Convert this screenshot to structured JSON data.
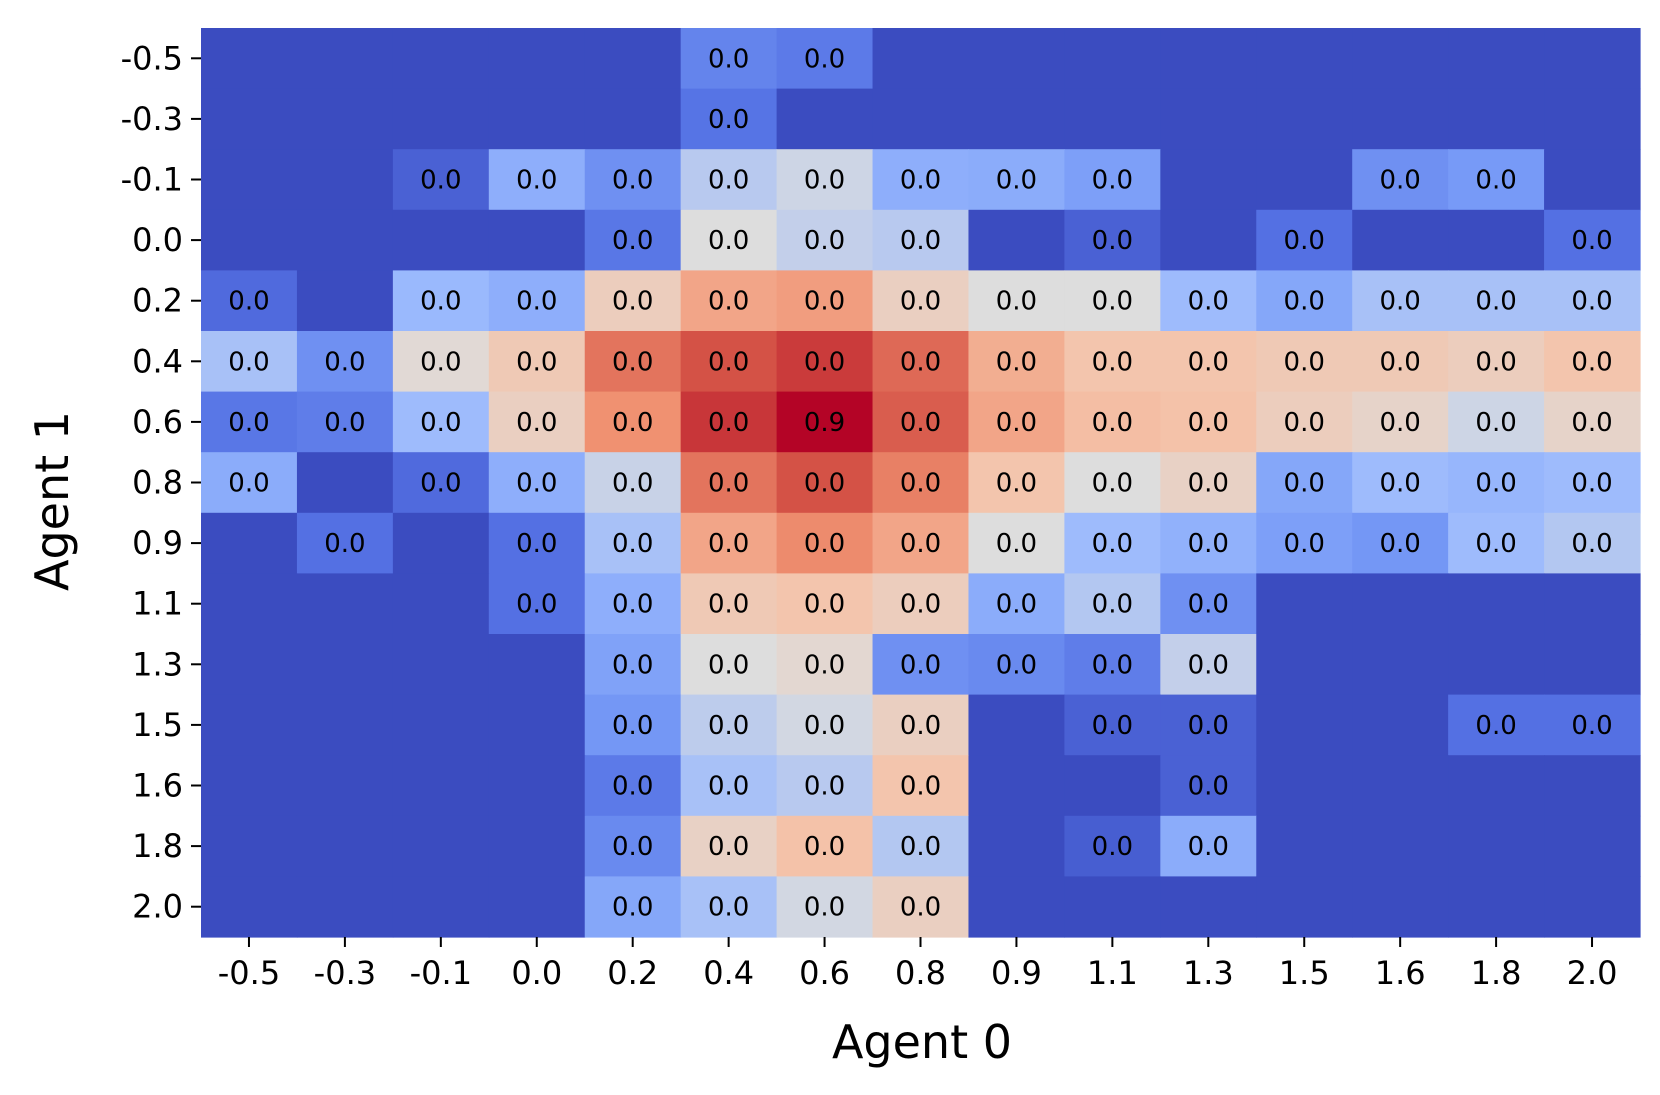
{
  "chart_data": {
    "type": "heatmap",
    "xlabel": "Agent 0",
    "ylabel": "Agent 1",
    "x_ticks": [
      "-0.5",
      "-0.3",
      "-0.1",
      "0.0",
      "0.2",
      "0.4",
      "0.6",
      "0.8",
      "0.9",
      "1.1",
      "1.3",
      "1.5",
      "1.6",
      "1.8",
      "2.0"
    ],
    "y_ticks": [
      "-0.5",
      "-0.3",
      "-0.1",
      "0.0",
      "0.2",
      "0.4",
      "0.6",
      "0.8",
      "0.9",
      "1.1",
      "1.3",
      "1.5",
      "1.6",
      "1.8",
      "2.0"
    ],
    "colormap": "coolwarm",
    "values": [
      [
        0,
        0,
        0,
        0,
        0,
        0.18,
        0.15,
        0,
        0,
        0,
        0,
        0,
        0,
        0,
        0
      ],
      [
        0,
        0,
        0,
        0,
        0,
        0.13,
        0,
        0,
        0,
        0,
        0,
        0,
        0,
        0,
        0
      ],
      [
        0,
        0,
        0.07,
        0.33,
        0.22,
        0.43,
        0.47,
        0.33,
        0.32,
        0.27,
        0,
        0,
        0.22,
        0.25,
        0
      ],
      [
        0,
        0,
        0,
        0,
        0.14,
        0.5,
        0.45,
        0.43,
        0,
        0.07,
        0,
        0.12,
        0,
        0,
        0.12
      ],
      [
        0.1,
        0,
        0.37,
        0.33,
        0.58,
        0.7,
        0.72,
        0.57,
        0.5,
        0.5,
        0.38,
        0.3,
        0.4,
        0.4,
        0.4
      ],
      [
        0.4,
        0.22,
        0.52,
        0.6,
        0.8,
        0.86,
        0.9,
        0.82,
        0.68,
        0.62,
        0.62,
        0.6,
        0.6,
        0.58,
        0.62
      ],
      [
        0.14,
        0.16,
        0.38,
        0.57,
        0.75,
        0.91,
        1.0,
        0.84,
        0.7,
        0.64,
        0.63,
        0.58,
        0.55,
        0.47,
        0.55
      ],
      [
        0.32,
        0,
        0.1,
        0.33,
        0.46,
        0.8,
        0.86,
        0.78,
        0.62,
        0.5,
        0.56,
        0.3,
        0.38,
        0.36,
        0.38
      ],
      [
        0,
        0.12,
        0,
        0.12,
        0.4,
        0.7,
        0.76,
        0.7,
        0.5,
        0.38,
        0.34,
        0.27,
        0.24,
        0.38,
        0.42
      ],
      [
        0,
        0,
        0,
        0.12,
        0.33,
        0.6,
        0.62,
        0.58,
        0.32,
        0.42,
        0.22,
        0,
        0,
        0,
        0
      ],
      [
        0,
        0,
        0,
        0,
        0.28,
        0.5,
        0.53,
        0.22,
        0.2,
        0.16,
        0.45,
        0,
        0,
        0,
        0
      ],
      [
        0,
        0,
        0,
        0,
        0.24,
        0.44,
        0.48,
        0.57,
        0,
        0.07,
        0.07,
        0,
        0,
        0.12,
        0.12
      ],
      [
        0,
        0,
        0,
        0,
        0.15,
        0.4,
        0.43,
        0.62,
        0,
        0,
        0.07,
        0,
        0,
        0,
        0
      ],
      [
        0,
        0,
        0,
        0,
        0.2,
        0.56,
        0.63,
        0.42,
        0,
        0.06,
        0.32,
        0,
        0,
        0,
        0
      ],
      [
        0,
        0,
        0,
        0,
        0.3,
        0.4,
        0.48,
        0.57,
        0,
        0,
        0,
        0,
        0,
        0,
        0
      ]
    ],
    "labels": [
      [
        "",
        "",
        "",
        "",
        "",
        "0.0",
        "0.0",
        "",
        "",
        "",
        "",
        "",
        "",
        "",
        ""
      ],
      [
        "",
        "",
        "",
        "",
        "",
        "0.0",
        "",
        "",
        "",
        "",
        "",
        "",
        "",
        "",
        ""
      ],
      [
        "",
        "",
        "0.0",
        "0.0",
        "0.0",
        "0.0",
        "0.0",
        "0.0",
        "0.0",
        "0.0",
        "",
        "",
        "0.0",
        "0.0",
        ""
      ],
      [
        "",
        "",
        "",
        "",
        "0.0",
        "0.0",
        "0.0",
        "0.0",
        "",
        "0.0",
        "",
        "0.0",
        "",
        "",
        "0.0"
      ],
      [
        "0.0",
        "",
        "0.0",
        "0.0",
        "0.0",
        "0.0",
        "0.0",
        "0.0",
        "0.0",
        "0.0",
        "0.0",
        "0.0",
        "0.0",
        "0.0",
        "0.0"
      ],
      [
        "0.0",
        "0.0",
        "0.0",
        "0.0",
        "0.0",
        "0.0",
        "0.0",
        "0.0",
        "0.0",
        "0.0",
        "0.0",
        "0.0",
        "0.0",
        "0.0",
        "0.0"
      ],
      [
        "0.0",
        "0.0",
        "0.0",
        "0.0",
        "0.0",
        "0.0",
        "0.9",
        "0.0",
        "0.0",
        "0.0",
        "0.0",
        "0.0",
        "0.0",
        "0.0",
        "0.0"
      ],
      [
        "0.0",
        "",
        "0.0",
        "0.0",
        "0.0",
        "0.0",
        "0.0",
        "0.0",
        "0.0",
        "0.0",
        "0.0",
        "0.0",
        "0.0",
        "0.0",
        "0.0"
      ],
      [
        "",
        "0.0",
        "",
        "0.0",
        "0.0",
        "0.0",
        "0.0",
        "0.0",
        "0.0",
        "0.0",
        "0.0",
        "0.0",
        "0.0",
        "0.0",
        "0.0"
      ],
      [
        "",
        "",
        "",
        "0.0",
        "0.0",
        "0.0",
        "0.0",
        "0.0",
        "0.0",
        "0.0",
        "0.0",
        "",
        "",
        "",
        ""
      ],
      [
        "",
        "",
        "",
        "",
        "0.0",
        "0.0",
        "0.0",
        "0.0",
        "0.0",
        "0.0",
        "0.0",
        "",
        "",
        "",
        ""
      ],
      [
        "",
        "",
        "",
        "",
        "0.0",
        "0.0",
        "0.0",
        "0.0",
        "",
        "0.0",
        "0.0",
        "",
        "",
        "0.0",
        "0.0"
      ],
      [
        "",
        "",
        "",
        "",
        "0.0",
        "0.0",
        "0.0",
        "0.0",
        "",
        "",
        "0.0",
        "",
        "",
        "",
        ""
      ],
      [
        "",
        "",
        "",
        "",
        "0.0",
        "0.0",
        "0.0",
        "0.0",
        "",
        "0.0",
        "0.0",
        "",
        "",
        "",
        ""
      ],
      [
        "",
        "",
        "",
        "",
        "0.0",
        "0.0",
        "0.0",
        "0.0",
        "",
        "",
        "",
        "",
        "",
        "",
        ""
      ]
    ]
  }
}
